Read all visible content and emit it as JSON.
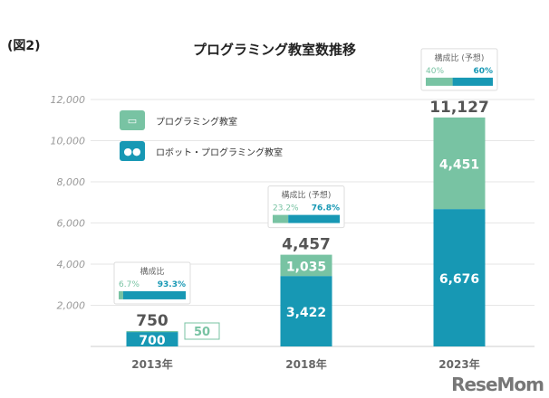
{
  "figure_label": "(図2)",
  "chart_data": {
    "type": "bar",
    "title": "プログラミング教室数推移",
    "categories": [
      "2013年",
      "2018年",
      "2023年"
    ],
    "series": [
      {
        "name": "ロボット・プログラミング教室",
        "color": "#1798b4",
        "values": [
          700,
          3422,
          6676
        ]
      },
      {
        "name": "プログラミング教室",
        "color": "#78c3a3",
        "values": [
          50,
          1035,
          4451
        ]
      }
    ],
    "totals": [
      "750",
      "4,457",
      "11,127"
    ],
    "labels": [
      [
        "700",
        "3,422",
        "6,676"
      ],
      [
        "50",
        "1,035",
        "4,451"
      ]
    ],
    "ylim": [
      0,
      12000
    ],
    "yticks": [
      2000,
      4000,
      6000,
      8000,
      10000,
      12000
    ],
    "ytick_labels": [
      "2,000",
      "4,000",
      "6,000",
      "8,000",
      "10,000",
      "12,000"
    ],
    "grid": true,
    "legend_position": "top-left",
    "composition": [
      {
        "title": "構成比",
        "note": "",
        "prog": "6.7%",
        "robot": "93.3%",
        "prog_frac": 0.067
      },
      {
        "title": "構成比",
        "note": "(予想)",
        "prog": "23.2%",
        "robot": "76.8%",
        "prog_frac": 0.232
      },
      {
        "title": "構成比",
        "note": "(予想)",
        "prog": "40%",
        "robot": "60%",
        "prog_frac": 0.4
      }
    ]
  },
  "logo": "ReseMom"
}
